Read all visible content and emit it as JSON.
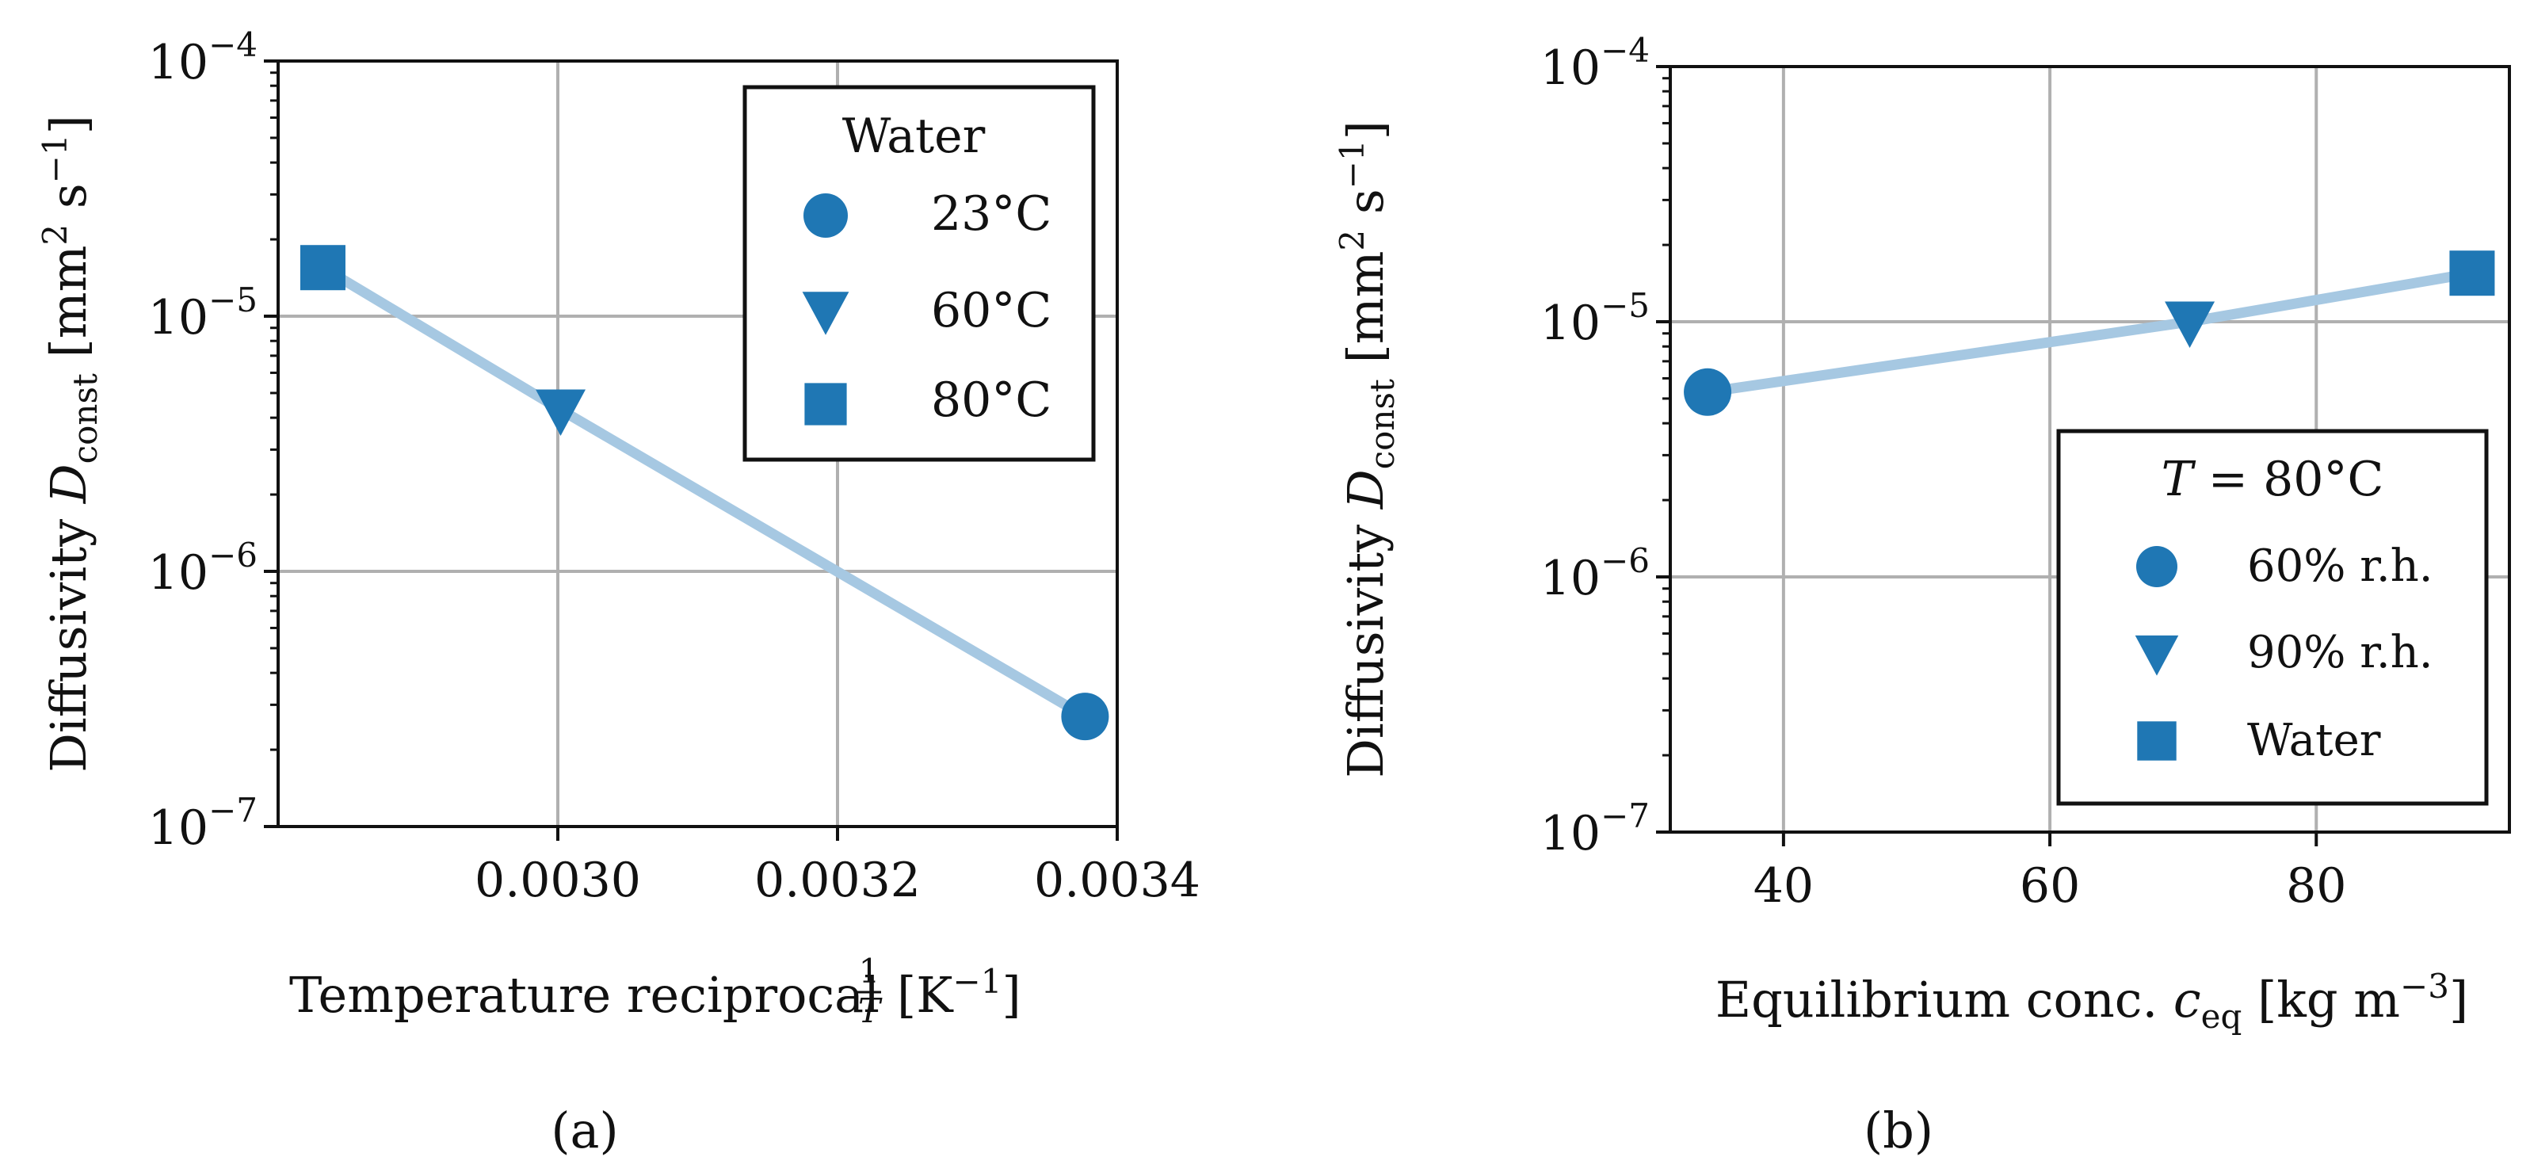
{
  "marker_color": "#1f77b4",
  "line_color": "#a6c8e2",
  "chart_data": [
    {
      "panel": "(a)",
      "type": "line",
      "yscale": "log",
      "ylabel": "Diffusivity D_const [mm² s⁻¹]",
      "ylabel_parts": {
        "prefix": "Diffusivity ",
        "var": "D",
        "sub": "const",
        "units_open": " [mm",
        "sup1": "2",
        "units_mid": " s",
        "sup2": "−1",
        "units_close": "]"
      },
      "xlabel": "Temperature reciprocal 1/T [K⁻¹]",
      "xlabel_parts": {
        "text": "Temperature reciprocal ",
        "frac_num": "1",
        "frac_den": "T",
        "units_open": "[K",
        "sup": "−1",
        "units_close": "]"
      },
      "xlim": [
        0.0028,
        0.0034
      ],
      "ylim": [
        1e-07,
        0.0001
      ],
      "xticks": [
        0.003,
        0.0032,
        0.0034
      ],
      "xtick_labels": [
        "0.0030",
        "0.0032",
        "0.0034"
      ],
      "yticks": [
        1e-07,
        1e-06,
        1e-05,
        0.0001
      ],
      "ytick_exponents": [
        "−7",
        "−6",
        "−5",
        "−4"
      ],
      "ytick_base": "10",
      "grid": true,
      "legend_position": "top-right",
      "legend_title": "Water",
      "points": [
        {
          "label": "80°C",
          "marker": "square",
          "x": 0.002832,
          "y": 1.55e-05
        },
        {
          "label": "60°C",
          "marker": "triangle-down",
          "x": 0.003002,
          "y": 4.3e-06
        },
        {
          "label": "23°C",
          "marker": "circle",
          "x": 0.003377,
          "y": 2.7e-07
        }
      ],
      "legend": [
        {
          "label": "23°C",
          "marker": "circle"
        },
        {
          "label": "60°C",
          "marker": "triangle-down"
        },
        {
          "label": "80°C",
          "marker": "square"
        }
      ]
    },
    {
      "panel": "(b)",
      "type": "line",
      "yscale": "log",
      "ylabel": "Diffusivity D_const [mm² s⁻¹]",
      "ylabel_parts": {
        "prefix": "Diffusivity ",
        "var": "D",
        "sub": "const",
        "units_open": " [mm",
        "sup1": "2",
        "units_mid": " s",
        "sup2": "−1",
        "units_close": "]"
      },
      "xlabel": "Equilibrium conc. c_eq [kg m⁻³]",
      "xlabel_parts": {
        "text": "Equilibrium conc. ",
        "var": "c",
        "sub": "eq",
        "units_open": " [kg m",
        "sup": "−3",
        "units_close": "]"
      },
      "xlim": [
        31.5,
        94.5
      ],
      "ylim": [
        1e-07,
        0.0001
      ],
      "xticks": [
        40,
        60,
        80
      ],
      "xtick_labels": [
        "40",
        "60",
        "80"
      ],
      "yticks": [
        1e-07,
        1e-06,
        1e-05,
        0.0001
      ],
      "ytick_exponents": [
        "−7",
        "−6",
        "−5",
        "−4"
      ],
      "ytick_base": "10",
      "grid": true,
      "legend_position": "bottom-right",
      "legend_title": "T = 80°C",
      "legend_title_parts": {
        "var": "T",
        "rest": " = 80°C"
      },
      "points": [
        {
          "label": "60% r.h.",
          "marker": "circle",
          "x": 34.3,
          "y": 5.3e-06
        },
        {
          "label": "90% r.h.",
          "marker": "triangle-down",
          "x": 70.5,
          "y": 1e-05
        },
        {
          "label": "Water",
          "marker": "square",
          "x": 91.7,
          "y": 1.55e-05
        }
      ],
      "legend": [
        {
          "label": "60% r.h.",
          "marker": "circle"
        },
        {
          "label": "90% r.h.",
          "marker": "triangle-down"
        },
        {
          "label": "Water",
          "marker": "square"
        }
      ]
    }
  ]
}
